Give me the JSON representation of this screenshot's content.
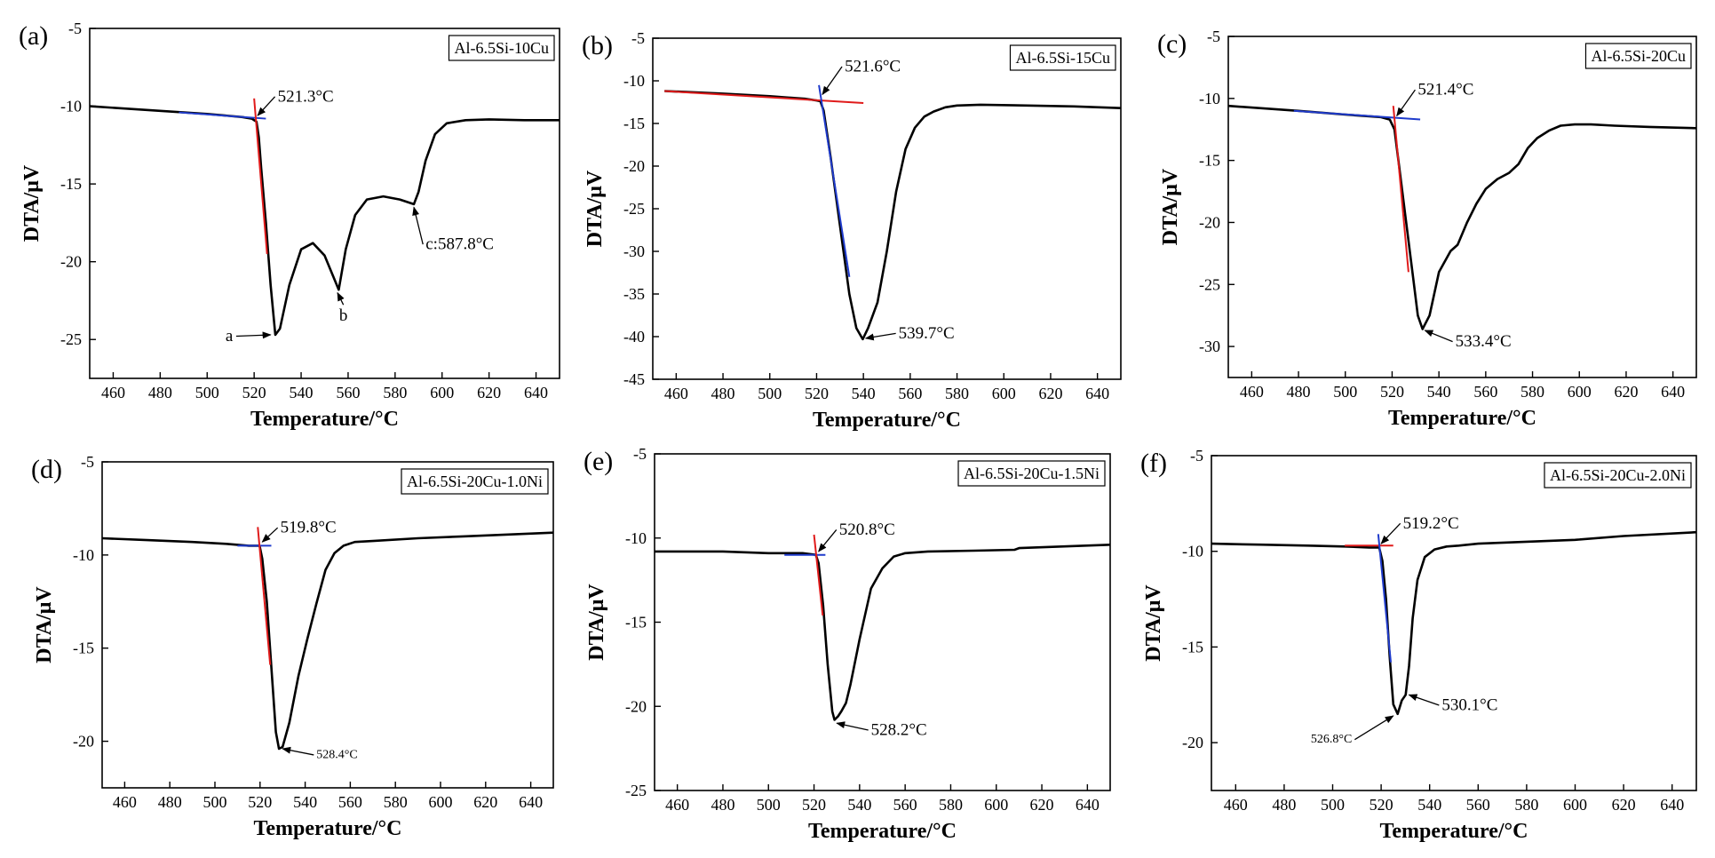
{
  "chart_data": [
    {
      "panel": "(a)",
      "type": "line",
      "legend": "Al-6.5Si-10Cu",
      "xlabel": "Temperature/°C",
      "ylabel": "DTA/μV",
      "xlim": [
        450,
        650
      ],
      "ylim": [
        -27.5,
        -5
      ],
      "xticks": [
        460,
        480,
        500,
        520,
        540,
        560,
        580,
        600,
        620,
        640
      ],
      "yticks": [
        -5,
        -10,
        -15,
        -20,
        -25
      ],
      "series": [
        {
          "x": [
            450,
            480,
            500,
            515,
            519,
            521,
            522,
            523,
            525,
            527,
            529,
            531,
            535,
            540,
            545,
            550,
            553,
            556,
            559,
            563,
            568,
            575,
            582,
            586,
            588,
            590,
            593,
            597,
            602,
            610,
            620,
            635,
            650
          ],
          "y": [
            -10,
            -10.3,
            -10.5,
            -10.7,
            -10.8,
            -11,
            -12,
            -14,
            -17.5,
            -21.5,
            -24.7,
            -24.3,
            -21.5,
            -19.2,
            -18.8,
            -19.6,
            -20.7,
            -21.8,
            -19.2,
            -17,
            -16,
            -15.8,
            -16,
            -16.2,
            -16.3,
            -15.5,
            -13.5,
            -11.8,
            -11.1,
            -10.9,
            -10.85,
            -10.9,
            -10.9
          ]
        }
      ],
      "tangents": [
        {
          "x": [
            488,
            525
          ],
          "y": [
            -10.4,
            -10.8
          ],
          "color": "#1f3bcc"
        },
        {
          "x": [
            520,
            525.5
          ],
          "y": [
            -9.5,
            -19.5
          ],
          "color": "#e01b1b"
        }
      ],
      "annotations": [
        {
          "text": "521.3°C",
          "x": 530,
          "y": -9.7,
          "ax": 521.5,
          "ay": -10.6
        },
        {
          "text": "a",
          "x": 511,
          "y": -25.1,
          "ax": 527,
          "ay": -24.7,
          "anchor": "end"
        },
        {
          "text": "b",
          "x": 558,
          "y": -23.8,
          "ax": 555.5,
          "ay": -22,
          "anchor": "middle"
        },
        {
          "text": "c:587.8°C",
          "x": 593,
          "y": -19.2,
          "ax": 588,
          "ay": -16.5
        }
      ]
    },
    {
      "panel": "(b)",
      "type": "line",
      "legend": "Al-6.5Si-15Cu",
      "xlabel": "Temperature/°C",
      "ylabel": "DTA/μV",
      "xlim": [
        450,
        650
      ],
      "ylim": [
        -45,
        -5
      ],
      "xticks": [
        460,
        480,
        500,
        520,
        540,
        560,
        580,
        600,
        620,
        640
      ],
      "yticks": [
        -5,
        -10,
        -15,
        -20,
        -25,
        -30,
        -35,
        -40,
        -45
      ],
      "series": [
        {
          "x": [
            455,
            480,
            500,
            515,
            520,
            521.6,
            523,
            526,
            530,
            534,
            537,
            539.7,
            542,
            546,
            550,
            554,
            558,
            562,
            566,
            570,
            575,
            580,
            590,
            610,
            630,
            650
          ],
          "y": [
            -11.2,
            -11.5,
            -11.8,
            -12.1,
            -12.3,
            -12.4,
            -13.5,
            -19,
            -27,
            -35,
            -39,
            -40.3,
            -39,
            -36,
            -30,
            -23,
            -18,
            -15.5,
            -14.2,
            -13.6,
            -13.1,
            -12.9,
            -12.8,
            -12.9,
            -13,
            -13.2
          ]
        }
      ],
      "tangents": [
        {
          "x": [
            455,
            540
          ],
          "y": [
            -11.2,
            -12.6
          ],
          "color": "#e01b1b"
        },
        {
          "x": [
            521,
            534
          ],
          "y": [
            -10.5,
            -33
          ],
          "color": "#1f3bcc"
        }
      ],
      "annotations": [
        {
          "text": "521.6°C",
          "x": 532,
          "y": -8.9,
          "ax": 522.5,
          "ay": -11.6
        },
        {
          "text": "539.7°C",
          "x": 555,
          "y": -40.2,
          "ax": 541,
          "ay": -40.2
        }
      ]
    },
    {
      "panel": "(c)",
      "type": "line",
      "legend": "Al-6.5Si-20Cu",
      "xlabel": "Temperature/°C",
      "ylabel": "DTA/μV",
      "xlim": [
        450,
        650
      ],
      "ylim": [
        -32.5,
        -5
      ],
      "xticks": [
        460,
        480,
        500,
        520,
        540,
        560,
        580,
        600,
        620,
        640
      ],
      "yticks": [
        -5,
        -10,
        -15,
        -20,
        -25,
        -30
      ],
      "series": [
        {
          "x": [
            450,
            480,
            500,
            515,
            519,
            521,
            523,
            526,
            529,
            531,
            533,
            536,
            540,
            545,
            548,
            552,
            556,
            560,
            565,
            570,
            574,
            578,
            582,
            587,
            592,
            598,
            605,
            615,
            630,
            650
          ],
          "y": [
            -10.6,
            -11,
            -11.3,
            -11.5,
            -11.7,
            -12.5,
            -15.5,
            -20,
            -24.5,
            -27.5,
            -28.6,
            -27.5,
            -24,
            -22.3,
            -21.8,
            -20,
            -18.5,
            -17.3,
            -16.5,
            -16,
            -15.3,
            -14,
            -13.2,
            -12.6,
            -12.2,
            -12.1,
            -12.1,
            -12.2,
            -12.3,
            -12.4
          ]
        }
      ],
      "tangents": [
        {
          "x": [
            478,
            532
          ],
          "y": [
            -11,
            -11.7
          ],
          "color": "#1f3bcc"
        },
        {
          "x": [
            520.5,
            527
          ],
          "y": [
            -10.6,
            -24
          ],
          "color": "#e01b1b"
        }
      ],
      "annotations": [
        {
          "text": "521.4°C",
          "x": 531,
          "y": -9.7,
          "ax": 522,
          "ay": -11.4
        },
        {
          "text": "533.4°C",
          "x": 547,
          "y": -30,
          "ax": 534,
          "ay": -28.7
        }
      ]
    },
    {
      "panel": "(d)",
      "type": "line",
      "legend": "Al-6.5Si-20Cu-1.0Ni",
      "xlabel": "Temperature/°C",
      "ylabel": "DTA/μV",
      "xlim": [
        450,
        650
      ],
      "ylim": [
        -22.5,
        -5
      ],
      "xticks": [
        460,
        480,
        500,
        520,
        540,
        560,
        580,
        600,
        620,
        640
      ],
      "yticks": [
        -5,
        -10,
        -15,
        -20
      ],
      "series": [
        {
          "x": [
            450,
            470,
            490,
            505,
            515,
            519.8,
            521,
            523,
            525,
            527,
            528.4,
            530,
            533,
            537,
            541,
            545,
            549,
            553,
            557,
            562,
            570,
            590,
            610,
            630,
            650
          ],
          "y": [
            -9.1,
            -9.2,
            -9.3,
            -9.4,
            -9.5,
            -9.5,
            -10.2,
            -12.5,
            -16,
            -19.5,
            -20.4,
            -20.3,
            -19,
            -16.5,
            -14.5,
            -12.6,
            -10.8,
            -9.9,
            -9.5,
            -9.3,
            -9.25,
            -9.1,
            -9,
            -8.9,
            -8.8
          ]
        }
      ],
      "tangents": [
        {
          "x": [
            510,
            525
          ],
          "y": [
            -9.5,
            -9.5
          ],
          "color": "#1f3bcc"
        },
        {
          "x": [
            519,
            524.5
          ],
          "y": [
            -8.5,
            -15.9
          ],
          "color": "#e01b1b"
        }
      ],
      "annotations": [
        {
          "text": "519.8°C",
          "x": 529,
          "y": -8.8,
          "ax": 521,
          "ay": -9.3
        },
        {
          "text": "528.4°C",
          "x": 545,
          "y": -20.9,
          "ax": 530,
          "ay": -20.4,
          "small": true
        }
      ]
    },
    {
      "panel": "(e)",
      "type": "line",
      "legend": "Al-6.5Si-20Cu-1.5Ni",
      "xlabel": "Temperature/°C",
      "ylabel": "DTA/μV",
      "xlim": [
        450,
        650
      ],
      "ylim": [
        -25,
        -5
      ],
      "xticks": [
        460,
        480,
        500,
        520,
        540,
        560,
        580,
        600,
        620,
        640
      ],
      "yticks": [
        -5,
        -10,
        -15,
        -20,
        -25
      ],
      "series": [
        {
          "x": [
            450,
            480,
            500,
            515,
            520.8,
            522,
            524,
            526,
            528,
            529,
            530.5,
            532,
            534,
            536,
            540,
            545,
            550,
            555,
            560,
            570,
            590,
            608,
            610,
            630,
            650
          ],
          "y": [
            -10.8,
            -10.8,
            -10.9,
            -10.9,
            -11,
            -11.5,
            -14,
            -17.5,
            -20.3,
            -20.8,
            -20.6,
            -20.3,
            -19.8,
            -18.7,
            -16,
            -13,
            -11.8,
            -11.1,
            -10.9,
            -10.8,
            -10.75,
            -10.7,
            -10.6,
            -10.5,
            -10.4
          ]
        }
      ],
      "tangents": [
        {
          "x": [
            507,
            525
          ],
          "y": [
            -11,
            -11
          ],
          "color": "#1f3bcc"
        },
        {
          "x": [
            520,
            523.8
          ],
          "y": [
            -9.8,
            -14.6
          ],
          "color": "#e01b1b"
        }
      ],
      "annotations": [
        {
          "text": "520.8°C",
          "x": 531,
          "y": -9.8,
          "ax": 522,
          "ay": -10.8
        },
        {
          "text": "528.2°C",
          "x": 545,
          "y": -21.7,
          "ax": 530,
          "ay": -21
        }
      ]
    },
    {
      "panel": "(f)",
      "type": "line",
      "legend": "Al-6.5Si-20Cu-2.0Ni",
      "xlabel": "Temperature/°C",
      "ylabel": "DTA/μV",
      "xlim": [
        450,
        650
      ],
      "ylim": [
        -22.5,
        -5
      ],
      "xticks": [
        460,
        480,
        500,
        520,
        540,
        560,
        580,
        600,
        620,
        640
      ],
      "yticks": [
        -5,
        -10,
        -15,
        -20
      ],
      "series": [
        {
          "x": [
            450,
            470,
            490,
            505,
            515,
            519.2,
            520.5,
            522,
            523.5,
            525,
            526.8,
            528.5,
            530.1,
            531.5,
            533,
            535,
            538,
            542,
            547,
            552,
            560,
            580,
            600,
            620,
            650
          ],
          "y": [
            -9.6,
            -9.65,
            -9.7,
            -9.75,
            -9.8,
            -9.8,
            -10.5,
            -12.5,
            -15.5,
            -18,
            -18.5,
            -17.8,
            -17.5,
            -16,
            -13.5,
            -11.5,
            -10.3,
            -9.9,
            -9.75,
            -9.7,
            -9.6,
            -9.5,
            -9.4,
            -9.2,
            -9
          ]
        }
      ],
      "tangents": [
        {
          "x": [
            505,
            525
          ],
          "y": [
            -9.7,
            -9.7
          ],
          "color": "#e01b1b"
        },
        {
          "x": [
            518.8,
            524
          ],
          "y": [
            -9.1,
            -15.8
          ],
          "color": "#1f3bcc"
        }
      ],
      "annotations": [
        {
          "text": "519.2°C",
          "x": 529,
          "y": -8.8,
          "ax": 520,
          "ay": -9.6
        },
        {
          "text": "526.8°C",
          "x": 508,
          "y": -20,
          "ax": 525,
          "ay": -18.6,
          "small": true,
          "anchor": "end"
        },
        {
          "text": "530.1°C",
          "x": 545,
          "y": -18.3,
          "ax": 531.5,
          "ay": -17.5
        }
      ]
    }
  ]
}
